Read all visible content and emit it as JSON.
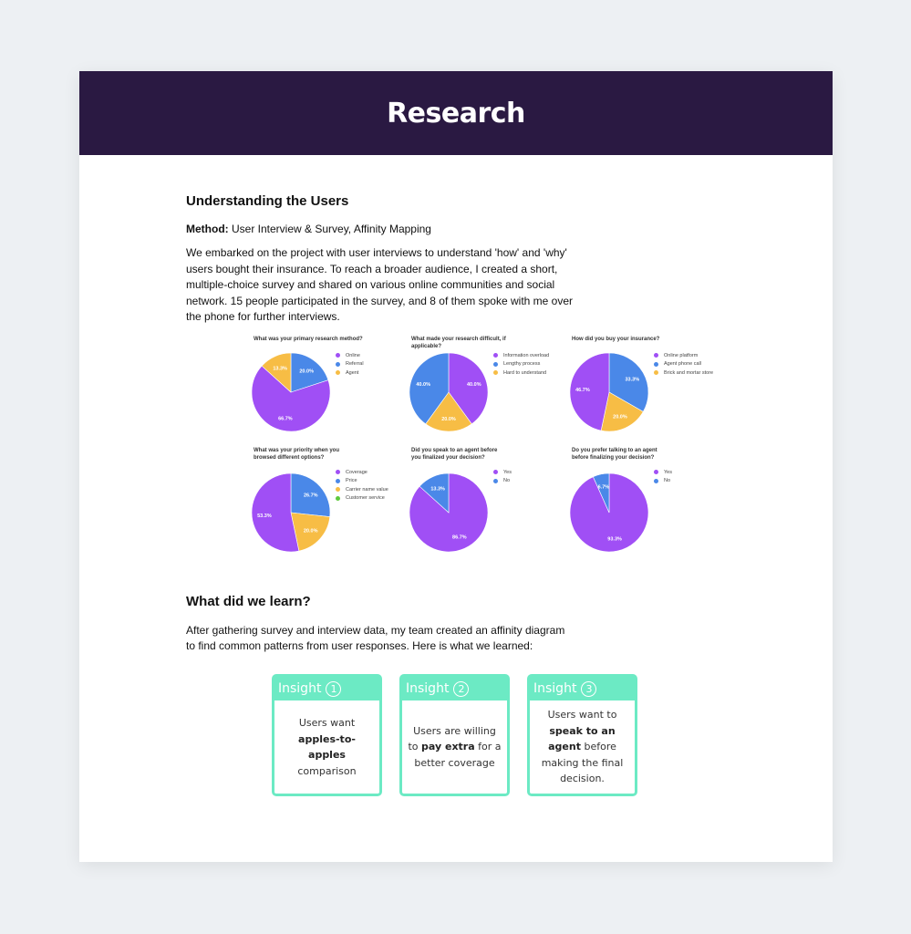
{
  "header": {
    "title": "Research"
  },
  "section1": {
    "title": "Understanding the Users",
    "method_label": "Method:",
    "method_value": " User Interview & Survey, Affinity Mapping",
    "body": "We embarked on the project with user interviews to understand 'how' and 'why' users bought their insurance. To reach a broader audience, I created a short, multiple-choice survey and shared on various online communities and social network. 15 people participated in the survey, and 8 of them spoke with me over the phone for further interviews."
  },
  "colors": {
    "purple": "#a04ff5",
    "blue": "#4a88e8",
    "yellow": "#f7bd45",
    "green": "#5fc93b",
    "header_bg": "#2a1942",
    "insight": "#6ceac4"
  },
  "chart_data": [
    {
      "type": "pie",
      "title": "What was your primary research method?",
      "series": [
        {
          "name": "Online",
          "value": 66.7,
          "color": "#a04ff5"
        },
        {
          "name": "Referral",
          "value": 20.0,
          "color": "#4a88e8"
        },
        {
          "name": "Agent",
          "value": 13.3,
          "color": "#f7bd45"
        }
      ],
      "legend": "right"
    },
    {
      "type": "pie",
      "title": "What made your research difficult, if applicable?",
      "series": [
        {
          "name": "Information overload",
          "value": 40.0,
          "color": "#a04ff5"
        },
        {
          "name": "Lengthy process",
          "value": 40.0,
          "color": "#4a88e8"
        },
        {
          "name": "Hard to understand",
          "value": 20.0,
          "color": "#f7bd45"
        }
      ],
      "legend": "right"
    },
    {
      "type": "pie",
      "title": "How did you buy your insurance?",
      "series": [
        {
          "name": "Online platform",
          "value": 46.7,
          "color": "#a04ff5"
        },
        {
          "name": "Agent phone call",
          "value": 33.3,
          "color": "#4a88e8"
        },
        {
          "name": "Brick and mortar store",
          "value": 20.0,
          "color": "#f7bd45"
        }
      ],
      "legend": "right"
    },
    {
      "type": "pie",
      "title": "What was your priority when you browsed different options?",
      "series": [
        {
          "name": "Coverage",
          "value": 53.3,
          "color": "#a04ff5"
        },
        {
          "name": "Price",
          "value": 26.7,
          "color": "#4a88e8"
        },
        {
          "name": "Carrier name value",
          "value": 20.0,
          "color": "#f7bd45"
        },
        {
          "name": "Customer service",
          "value": 0,
          "color": "#5fc93b"
        }
      ],
      "legend": "right"
    },
    {
      "type": "pie",
      "title": "Did you speak to an agent before you finalized your decision?",
      "series": [
        {
          "name": "Yes",
          "value": 86.7,
          "color": "#a04ff5"
        },
        {
          "name": "No",
          "value": 13.3,
          "color": "#4a88e8"
        }
      ],
      "legend": "right"
    },
    {
      "type": "pie",
      "title": "Do you prefer talking to an agent before finalizing your decision?",
      "series": [
        {
          "name": "Yes",
          "value": 93.3,
          "color": "#a04ff5"
        },
        {
          "name": "No",
          "value": 6.7,
          "color": "#4a88e8"
        }
      ],
      "legend": "right"
    }
  ],
  "section2": {
    "title": "What did we learn?",
    "body": "After gathering survey and interview data, my team created an affinity diagram to find common patterns from user responses. Here is what we learned:"
  },
  "insights": [
    {
      "label": "Insight",
      "number": "1",
      "pre": "Users want ",
      "bold": "apples-to-apples",
      "post": " comparison"
    },
    {
      "label": "Insight",
      "number": "2",
      "pre": "Users are willing to ",
      "bold": "pay extra",
      "post": " for a better coverage"
    },
    {
      "label": "Insight",
      "number": "3",
      "pre": "Users want to ",
      "bold": "speak to an agent",
      "post": " before making the final decision."
    }
  ]
}
